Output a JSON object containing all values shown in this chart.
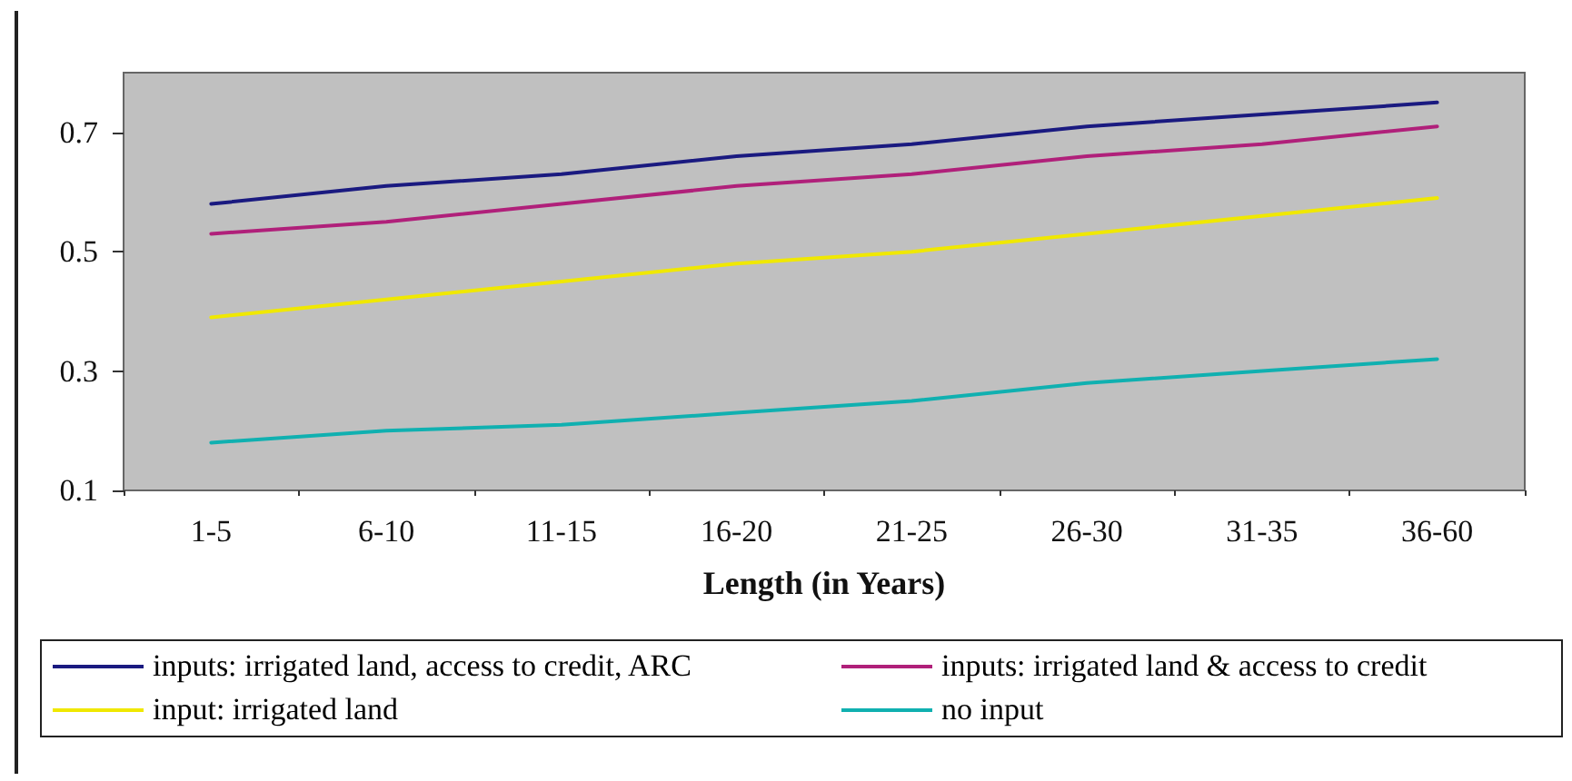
{
  "chart_data": {
    "type": "line",
    "xlabel": "Length (in Years)",
    "categories": [
      "1-5",
      "6-10",
      "11-15",
      "16-20",
      "21-25",
      "26-30",
      "31-35",
      "36-60"
    ],
    "series": [
      {
        "name": "inputs: irrigated land, access to credit, ARC",
        "color": "#1a1a80",
        "values": [
          0.58,
          0.61,
          0.63,
          0.66,
          0.68,
          0.71,
          0.73,
          0.75
        ]
      },
      {
        "name": "inputs: irrigated land & access to credit",
        "color": "#b0207a",
        "values": [
          0.53,
          0.55,
          0.58,
          0.61,
          0.63,
          0.66,
          0.68,
          0.71
        ]
      },
      {
        "name": "input: irrigated land",
        "color": "#f0e800",
        "values": [
          0.39,
          0.42,
          0.45,
          0.48,
          0.5,
          0.53,
          0.56,
          0.59
        ]
      },
      {
        "name": "no input",
        "color": "#10b0b0",
        "values": [
          0.18,
          0.2,
          0.21,
          0.23,
          0.25,
          0.28,
          0.3,
          0.32
        ]
      }
    ],
    "ylim": [
      0.1,
      0.8
    ],
    "yticks": [
      0.1,
      0.3,
      0.5,
      0.7
    ],
    "grid": false,
    "legend": "bottom",
    "marker": "none",
    "line_style": "solid"
  }
}
